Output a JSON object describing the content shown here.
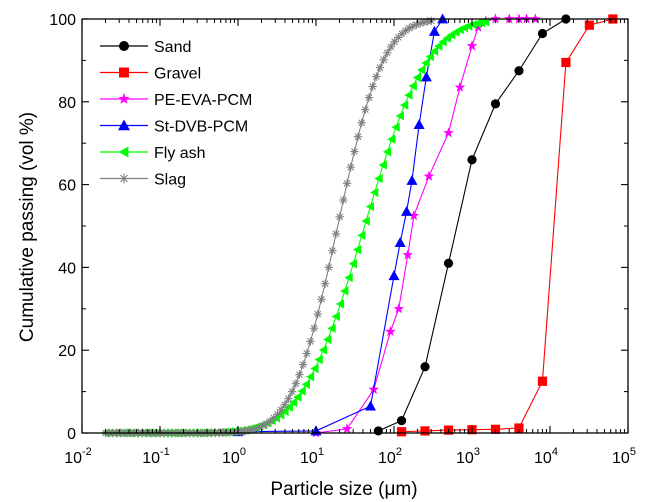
{
  "chart_data": {
    "type": "line",
    "xlabel": "Particle size (μm)",
    "ylabel": "Cumulative passing (vol %)",
    "xscale": "log",
    "xlim": [
      0.01,
      100000
    ],
    "ylim": [
      0,
      100
    ],
    "x_ticks": [
      {
        "value": 0.01,
        "base": "10",
        "exp": "-2"
      },
      {
        "value": 0.1,
        "base": "10",
        "exp": "-1"
      },
      {
        "value": 1,
        "base": "10",
        "exp": "0"
      },
      {
        "value": 10,
        "base": "10",
        "exp": "1"
      },
      {
        "value": 100,
        "base": "10",
        "exp": "2"
      },
      {
        "value": 1000,
        "base": "10",
        "exp": "3"
      },
      {
        "value": 10000,
        "base": "10",
        "exp": "4"
      },
      {
        "value": 100000,
        "base": "10",
        "exp": "5"
      }
    ],
    "y_ticks": [
      "0",
      "20",
      "40",
      "60",
      "80",
      "100"
    ],
    "grid": false,
    "legend_position": "top-left",
    "series": [
      {
        "name": "Sand",
        "color": "#000000",
        "marker": "circle",
        "x": [
          63,
          125,
          250,
          500,
          1000,
          2000,
          4000,
          8000,
          16000
        ],
        "y": [
          0.5,
          3,
          16,
          41,
          66,
          79.5,
          87.5,
          96.5,
          100
        ]
      },
      {
        "name": "Gravel",
        "color": "#ff0000",
        "marker": "square",
        "x": [
          125,
          250,
          500,
          1000,
          2000,
          4000,
          8000,
          16000,
          32000,
          64000
        ],
        "y": [
          0.3,
          0.5,
          0.7,
          0.8,
          0.9,
          1.2,
          12.5,
          89.5,
          98.5,
          100
        ]
      },
      {
        "name": "PE-EVA-PCM",
        "color": "#ff00ff",
        "marker": "star",
        "x": [
          10,
          25,
          55,
          90,
          115,
          150,
          180,
          280,
          500,
          700,
          1000,
          1200,
          1500,
          2000,
          3000,
          4000,
          5000,
          6500
        ],
        "y": [
          0,
          1,
          10.5,
          24.5,
          30,
          43,
          52.5,
          62,
          72.5,
          83.5,
          93.5,
          98,
          99.5,
          100,
          100,
          100,
          100,
          100
        ]
      },
      {
        "name": "St-DVB-PCM",
        "color": "#0000ff",
        "marker": "triangle-up",
        "x": [
          1,
          10,
          50,
          100,
          120,
          145,
          170,
          210,
          260,
          330,
          420
        ],
        "y": [
          0.3,
          0.5,
          6.5,
          38,
          46,
          53.5,
          61,
          74.5,
          86,
          97,
          100
        ]
      },
      {
        "name": "Fly ash",
        "color": "#00ff00",
        "marker": "triangle-left",
        "curve": "sigmoid",
        "x50": 42,
        "sigma": 1.45,
        "xmin": 0.02,
        "xmax": 1500,
        "n_points": 90
      },
      {
        "name": "Slag",
        "color": "#808080",
        "marker": "asterisk",
        "curve": "sigmoid",
        "x50": 19,
        "sigma": 1.05,
        "xmin": 0.02,
        "xmax": 300,
        "n_points": 90
      }
    ]
  }
}
